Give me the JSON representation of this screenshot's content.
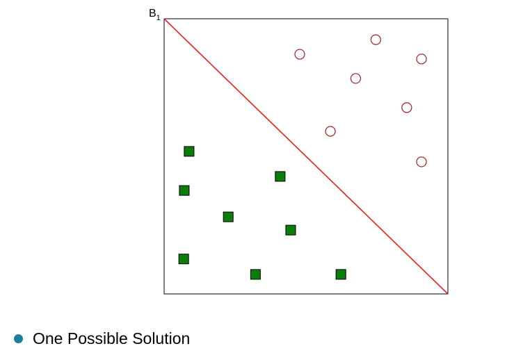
{
  "boundary": {
    "label": "B",
    "subscript": "1"
  },
  "colors": {
    "frame": "#000000",
    "boundary_line": "#ee1c1c",
    "square_fill": "#0a7d0a",
    "square_stroke": "#000000",
    "circle_stroke": "#a11e1e",
    "bullet": "#1a7f9a"
  },
  "bullet": {
    "text": "One Possible Solution"
  },
  "chart_data": {
    "type": "scatter",
    "xlim": [
      0,
      100
    ],
    "ylim": [
      0,
      100
    ],
    "boundary_line": [
      [
        0,
        100
      ],
      [
        100,
        0
      ]
    ],
    "series": [
      {
        "marker": "square",
        "values": [
          [
            8.8,
            51.8
          ],
          [
            7.1,
            37.6
          ],
          [
            22.6,
            28.0
          ],
          [
            40.9,
            42.7
          ],
          [
            44.6,
            23.2
          ],
          [
            6.9,
            12.7
          ],
          [
            32.2,
            7.1
          ],
          [
            62.3,
            7.1
          ]
        ]
      },
      {
        "marker": "circle",
        "values": [
          [
            47.8,
            87.1
          ],
          [
            74.6,
            92.4
          ],
          [
            90.7,
            85.4
          ],
          [
            67.5,
            78.3
          ],
          [
            85.5,
            67.7
          ],
          [
            58.6,
            59.1
          ],
          [
            90.7,
            48.0
          ]
        ]
      }
    ]
  }
}
